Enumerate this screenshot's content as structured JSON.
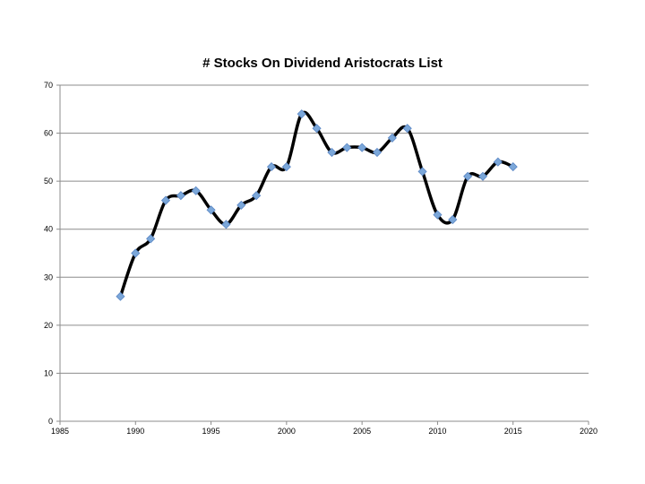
{
  "chart_data": {
    "type": "line",
    "title": "# Stocks On Dividend Aristocrats List",
    "xlabel": "",
    "ylabel": "",
    "xlim": [
      1985,
      2020
    ],
    "ylim": [
      0,
      70
    ],
    "xticks": [
      1985,
      1990,
      1995,
      2000,
      2005,
      2010,
      2015,
      2020
    ],
    "yticks": [
      0,
      10,
      20,
      30,
      40,
      50,
      60,
      70
    ],
    "grid": "horizontal",
    "legend": "none",
    "series": [
      {
        "x": [
          1989,
          1990,
          1991,
          1992,
          1993,
          1994,
          1995,
          1996,
          1997,
          1998,
          1999,
          2000,
          2001,
          2002,
          2003,
          2004,
          2005,
          2006,
          2007,
          2008,
          2009,
          2010,
          2011,
          2012,
          2013,
          2014,
          2015
        ],
        "y": [
          26,
          35,
          38,
          46,
          47,
          48,
          44,
          41,
          45,
          47,
          53,
          53,
          64,
          61,
          56,
          57,
          57,
          56,
          59,
          61,
          52,
          43,
          42,
          51,
          51,
          54,
          53
        ]
      }
    ],
    "colors": {
      "line": "#000000",
      "marker": "#7ba7d9",
      "marker_edge": "#5b87c5",
      "grid": "#8c8c8c",
      "axis": "#8c8c8c"
    }
  }
}
